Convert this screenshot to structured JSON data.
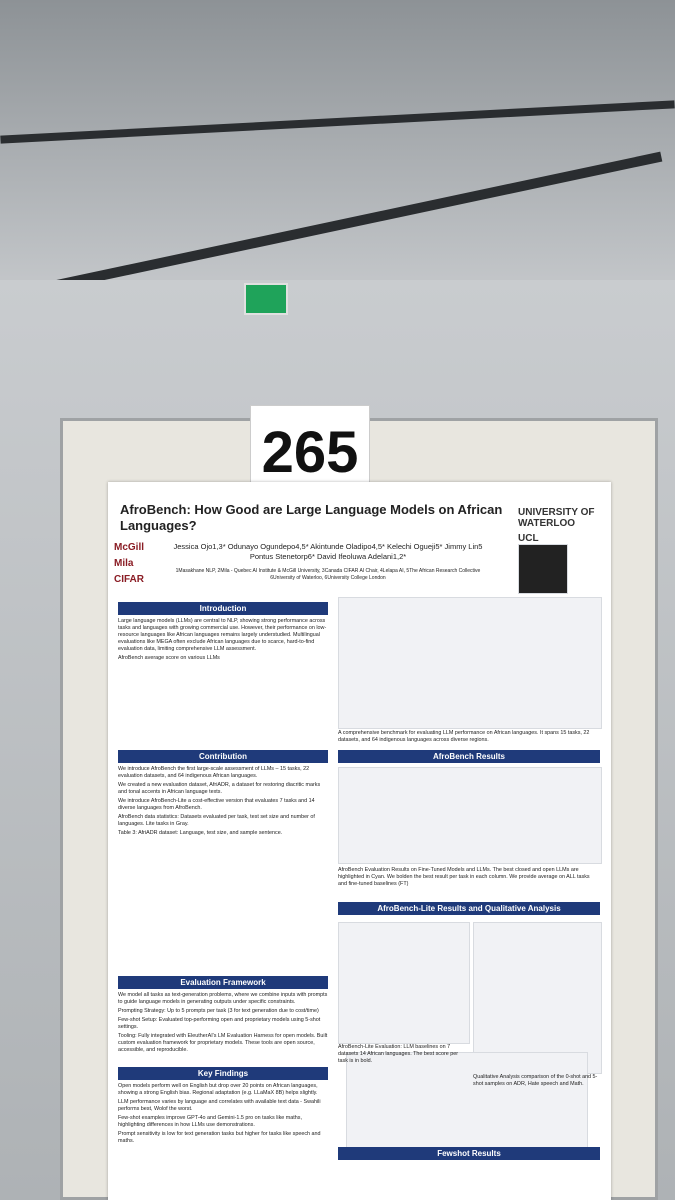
{
  "sign": {
    "number": "265"
  },
  "poster": {
    "title": "AfroBench: How Good are Large Language Models on African Languages?",
    "authors": "Jessica Ojo1,3* Odunayo Ogundepo4,5* Akintunde Oladipo4,5* Kelechi Ogueji5* Jimmy Lin5 Pontus Stenetorp6* David Ifeoluwa Adelani1,2*",
    "affiliations": "1Masakhane NLP, 2Mila - Quebec AI Institute & McGill University, 3Canada CIFAR AI Chair, 4Lelapa AI, 5The African Research Collective 6University of Waterloo, 6University College London",
    "logos_left": [
      "McGill",
      "Mila",
      "CIFAR"
    ],
    "logos_right": [
      "UNIVERSITY OF WATERLOO",
      "UCL"
    ],
    "sections": [
      {
        "heading": "Introduction",
        "paragraphs": [
          "Large language models (LLMs) are central to NLP, showing strong performance across tasks and languages with growing commercial use. However, their performance on low-resource languages like African languages remains largely understudied. Multilingual evaluations like MEGA often exclude African languages due to scarce, hard-to-find evaluation data, limiting comprehensive LLM assessment.",
          "AfroBench average score on various LLMs"
        ]
      },
      {
        "heading": "Contribution",
        "paragraphs": [
          "We introduce AfroBench the first large-scale assessment of LLMs – 15 tasks, 22 evaluation datasets, and 64 indigenous African languages.",
          "We created a new evaluation dataset, AfriADR, a dataset for restoring diacritic marks and tonal accents in African language texts.",
          "We introduce AfroBench-Lite a cost-effective version that evaluates 7 tasks and 14 diverse languages from AfroBench.",
          "AfroBench data statistics: Datasets evaluated per task, test set size and number of languages. Lite tasks in Gray.",
          "Table 3: AfriADR dataset: Language, test size, and sample sentence."
        ]
      },
      {
        "heading": "Evaluation Framework",
        "paragraphs": [
          "We model all tasks as text-generation problems, where we combine inputs with prompts to guide language models in generating outputs under specific constraints.",
          "Prompting Strategy: Up to 5 prompts per task (3 for text generation due to cost/time)",
          "Few-shot Setup: Evaluated top-performing open and proprietary models using 5-shot settings.",
          "Tooling: Fully integrated with EleutherAI's LM Evaluation Harness for open models. Built custom evaluation framework for proprietary models. These tools are open source, accessible, and reproducible."
        ]
      },
      {
        "heading": "Key Findings",
        "paragraphs": [
          "Open models perform well on English but drop over 20 points on African languages, showing a strong English bias. Regional adaptation (e.g. LLaMaX 8B) helps slightly.",
          "LLM performance varies by language and correlates with available text data - Swahili performs best, Wolof the worst.",
          "Few-shot examples improve GPT-4o and Gemini-1.5 pro on tasks like maths, highlighting differences in how LLMs use demonstrations.",
          "Prompt sensitivity is low for text generation tasks but higher for tasks like speech and maths."
        ]
      }
    ],
    "results": [
      {
        "heading": "AfroBench Results",
        "paragraphs": [
          "A comprehensive benchmark for evaluating LLM performance on African languages. It spans 15 tasks, 22 datasets, and 64 indigenous languages across diverse regions.",
          "AfroBench Evaluation Results on Fine-Tuned Models and LLMs. The best closed and open LLMs are highlighted in Cyan. We bolden the best result per task in each column. We provide average on ALL tasks and fine-tuned baselines (FT)"
        ]
      },
      {
        "heading": "AfroBench-Lite Results and Qualitative Analysis",
        "paragraphs": [
          "AfroBench-Lite Evaluation: LLM baselines on 7 datasets 14 African languages. The best score per task is in bold.",
          "Qualitative Analysis comparison of the 0-shot and 5-shot samples on ADR, Hate speech and Math."
        ]
      },
      {
        "heading": "Fewshot Results",
        "paragraphs": []
      }
    ]
  }
}
